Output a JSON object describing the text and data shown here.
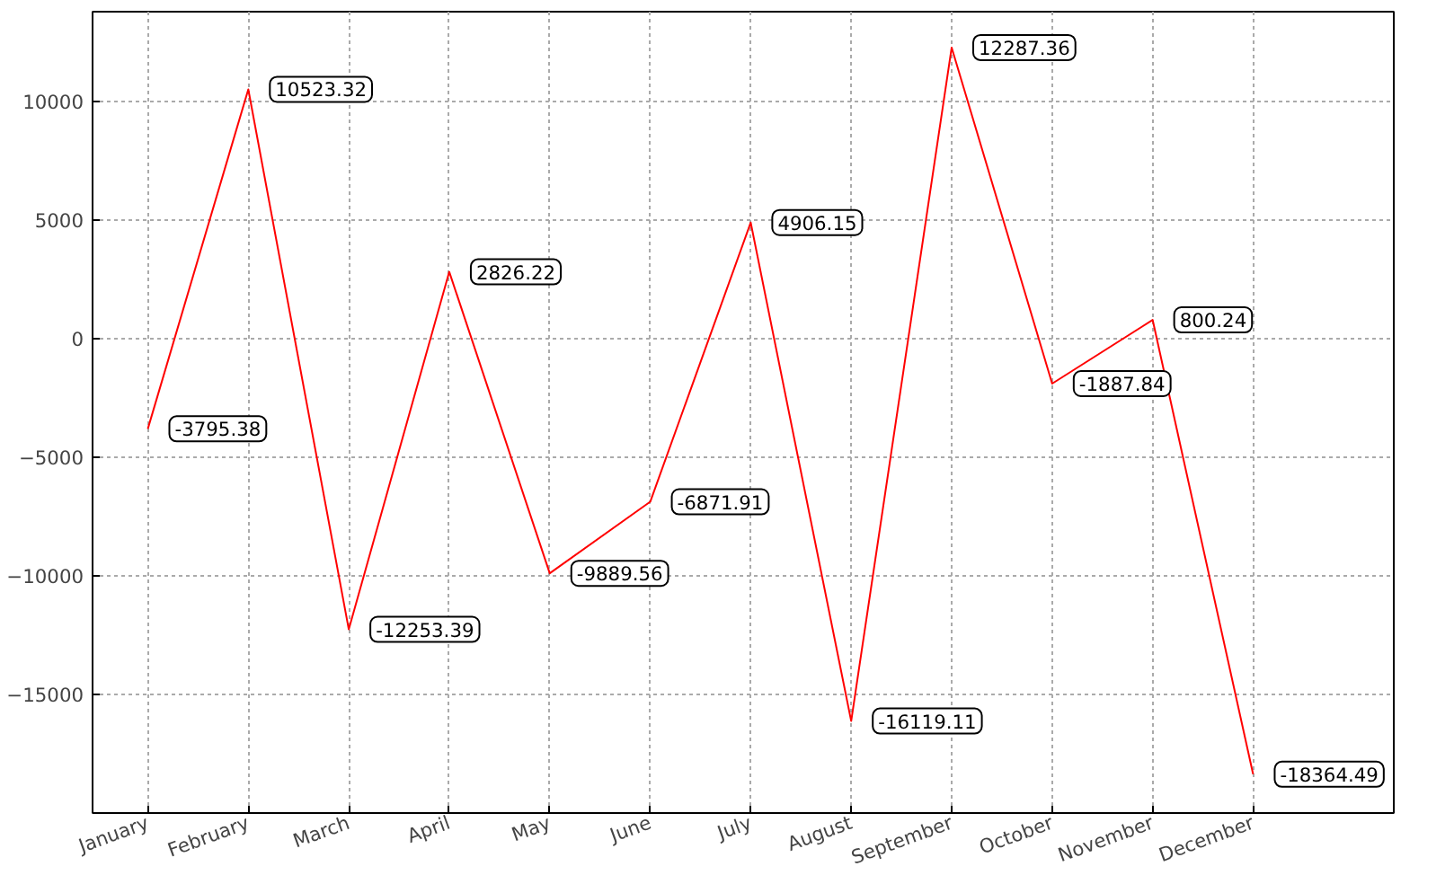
{
  "chart_data": {
    "type": "line",
    "categories": [
      "January",
      "February",
      "March",
      "April",
      "May",
      "June",
      "July",
      "August",
      "September",
      "October",
      "November",
      "December"
    ],
    "series": [
      {
        "color": "#ff0000",
        "values": [
          -3795.38,
          10523.32,
          -12253.39,
          2826.22,
          -9889.56,
          -6871.91,
          4906.15,
          -16119.11,
          12287.36,
          -1887.84,
          800.24,
          -18364.49
        ]
      }
    ],
    "ylim": [
      -20000,
      13800
    ],
    "yticks": [
      -15000,
      -10000,
      -5000,
      0,
      5000,
      10000
    ],
    "grid": true,
    "data_labels": true
  }
}
